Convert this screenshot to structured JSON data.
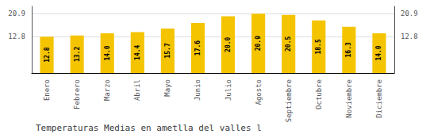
{
  "chart_data": {
    "type": "bar",
    "title": "Temperaturas Medias en ametlla del valles l",
    "categories": [
      "Enero",
      "Febrero",
      "Marzo",
      "Abril",
      "Mayo",
      "Junio",
      "Julio",
      "Agosto",
      "Septiembre",
      "Octubre",
      "Noviembre",
      "Diciembre"
    ],
    "values": [
      12.8,
      13.2,
      14.0,
      14.4,
      15.7,
      17.6,
      20.0,
      20.9,
      20.5,
      18.5,
      16.3,
      14.0
    ],
    "value_labels": [
      "12.8",
      "13.2",
      "14.0",
      "14.4",
      "15.7",
      "17.6",
      "20.0",
      "20.9",
      "20.5",
      "18.5",
      "16.3",
      "14.0"
    ],
    "color": "#F5C400",
    "ylim": [
      0,
      23.5
    ],
    "yticks": [
      12.8,
      20.9
    ],
    "grid": true,
    "data_labels": true
  }
}
